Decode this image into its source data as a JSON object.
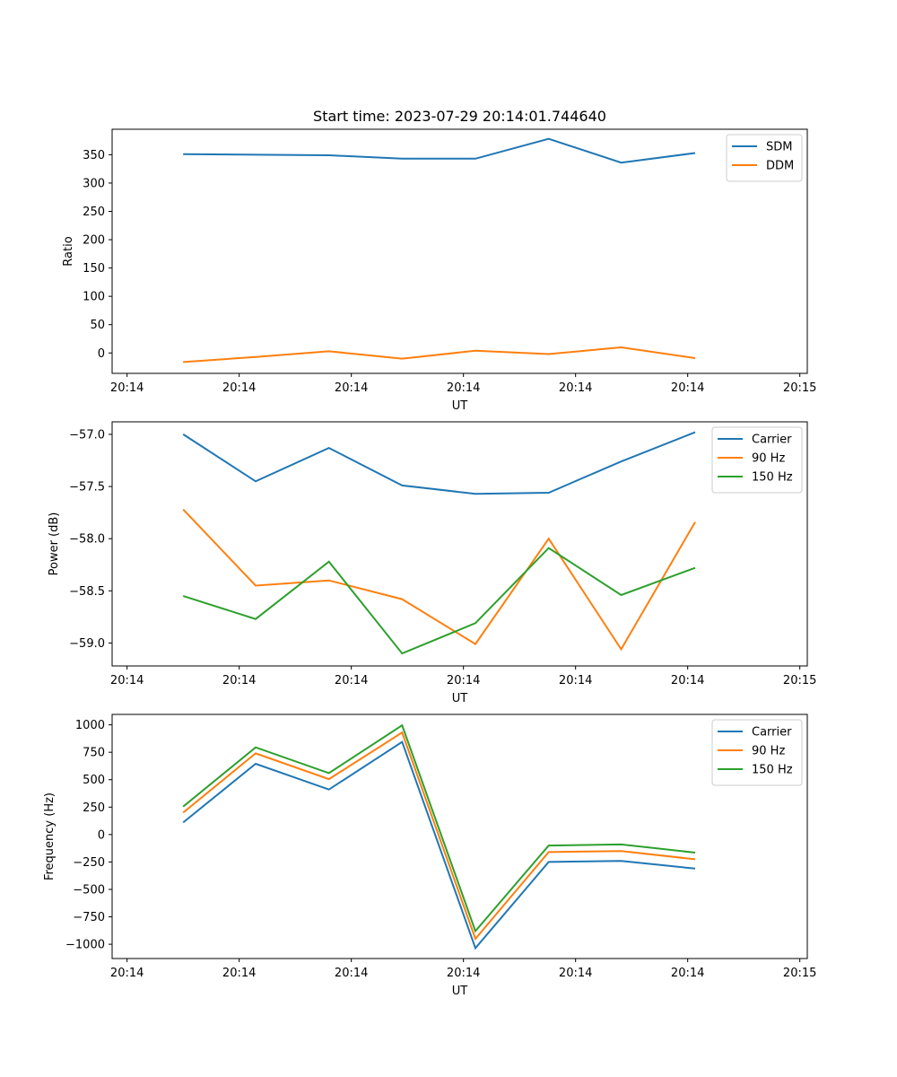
{
  "chart_data": [
    {
      "type": "line",
      "title": "Start time: 2023-07-29 20:14:01.744640",
      "xlabel": "UT",
      "ylabel": "Ratio",
      "xlim": [
        0,
        9.3
      ],
      "ylim": [
        -36,
        395
      ],
      "xticks": [
        0.2,
        1.7,
        3.2,
        4.7,
        6.2,
        7.7,
        9.2
      ],
      "xtick_labels": [
        "20:14",
        "20:14",
        "20:14",
        "20:14",
        "20:14",
        "20:14",
        "20:15"
      ],
      "yticks": [
        0,
        50,
        100,
        150,
        200,
        250,
        300,
        350
      ],
      "ytick_labels": [
        "0",
        "50",
        "100",
        "150",
        "200",
        "250",
        "300",
        "350"
      ],
      "legend_position": "upper right",
      "x": [
        0.95,
        1.92,
        2.9,
        3.88,
        4.86,
        5.84,
        6.81,
        7.8
      ],
      "series": [
        {
          "name": "SDM",
          "color": "#1f77b4",
          "values": [
            351,
            350,
            349,
            343,
            343,
            378,
            336,
            353
          ]
        },
        {
          "name": "DDM",
          "color": "#ff7f0e",
          "values": [
            -16,
            -7,
            3,
            -10,
            4,
            -2,
            10,
            -9
          ]
        }
      ]
    },
    {
      "type": "line",
      "title": "",
      "xlabel": "UT",
      "ylabel": "Power (dB)",
      "xlim": [
        0,
        9.3
      ],
      "ylim": [
        -59.22,
        -56.88
      ],
      "xticks": [
        0.2,
        1.7,
        3.2,
        4.7,
        6.2,
        7.7,
        9.2
      ],
      "xtick_labels": [
        "20:14",
        "20:14",
        "20:14",
        "20:14",
        "20:14",
        "20:14",
        "20:15"
      ],
      "yticks": [
        -59.0,
        -58.5,
        -58.0,
        -57.5,
        -57.0
      ],
      "ytick_labels": [
        "−59.0",
        "−58.5",
        "−58.0",
        "−57.5",
        "−57.0"
      ],
      "legend_position": "upper right",
      "x": [
        0.95,
        1.92,
        2.9,
        3.88,
        4.86,
        5.84,
        6.81,
        7.8
      ],
      "series": [
        {
          "name": "Carrier",
          "color": "#1f77b4",
          "values": [
            -57.0,
            -57.45,
            -57.13,
            -57.49,
            -57.57,
            -57.56,
            -57.26,
            -56.98
          ]
        },
        {
          "name": "90 Hz",
          "color": "#ff7f0e",
          "values": [
            -57.72,
            -58.45,
            -58.4,
            -58.58,
            -59.01,
            -58.0,
            -59.06,
            -57.84
          ]
        },
        {
          "name": "150 Hz",
          "color": "#2ca02c",
          "values": [
            -58.55,
            -58.77,
            -58.22,
            -59.1,
            -58.81,
            -58.09,
            -58.54,
            -58.28
          ]
        }
      ]
    },
    {
      "type": "line",
      "title": "",
      "xlabel": "UT",
      "ylabel": "Frequency (Hz)",
      "xlim": [
        0,
        9.3
      ],
      "ylim": [
        -1130,
        1095
      ],
      "xticks": [
        0.2,
        1.7,
        3.2,
        4.7,
        6.2,
        7.7,
        9.2
      ],
      "xtick_labels": [
        "20:14",
        "20:14",
        "20:14",
        "20:14",
        "20:14",
        "20:14",
        "20:15"
      ],
      "yticks": [
        -1000,
        -750,
        -500,
        -250,
        0,
        250,
        500,
        750,
        1000
      ],
      "ytick_labels": [
        "−1000",
        "−750",
        "−500",
        "−250",
        "0",
        "250",
        "500",
        "750",
        "1000"
      ],
      "legend_position": "upper right",
      "x": [
        0.95,
        1.92,
        2.9,
        3.88,
        4.86,
        5.84,
        6.81,
        7.8
      ],
      "series": [
        {
          "name": "Carrier",
          "color": "#1f77b4",
          "values": [
            110,
            645,
            410,
            845,
            -1035,
            -250,
            -240,
            -310
          ]
        },
        {
          "name": "90 Hz",
          "color": "#ff7f0e",
          "values": [
            200,
            740,
            505,
            930,
            -950,
            -160,
            -150,
            -225
          ]
        },
        {
          "name": "150 Hz",
          "color": "#2ca02c",
          "values": [
            255,
            795,
            560,
            995,
            -880,
            -100,
            -90,
            -165
          ]
        }
      ]
    }
  ]
}
